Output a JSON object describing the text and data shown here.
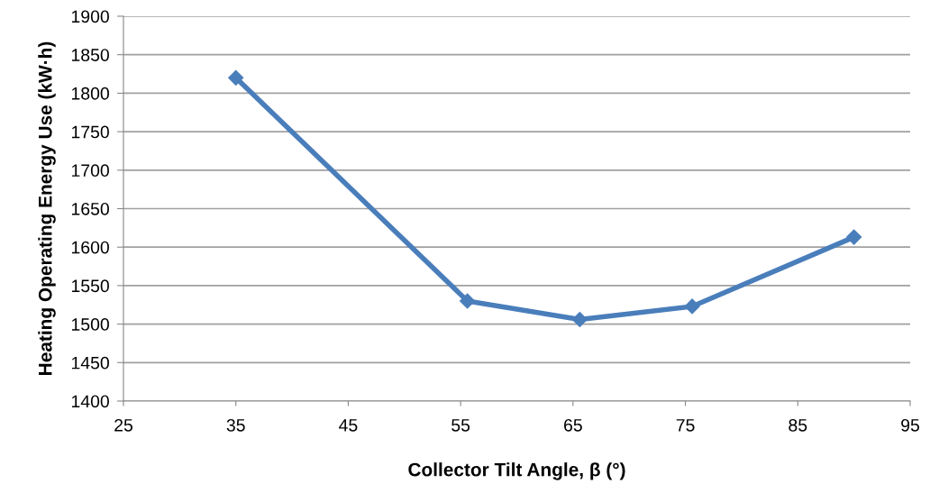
{
  "chart_data": {
    "type": "line",
    "xlabel": "Collector Tilt Angle, β (°)",
    "ylabel": "Heating Operating Energy Use (kW·h)",
    "x": [
      35,
      55.6,
      65.6,
      75.6,
      90
    ],
    "series": [
      {
        "color": "#4a7ebb",
        "values": [
          1820,
          1530,
          1506,
          1523,
          1613
        ]
      }
    ],
    "xlim": [
      25,
      95
    ],
    "xticks": [
      25,
      35,
      45,
      55,
      65,
      75,
      85,
      95
    ],
    "ylim": [
      1400,
      1900
    ],
    "yticks": [
      1400,
      1450,
      1500,
      1550,
      1600,
      1650,
      1700,
      1750,
      1800,
      1850,
      1900
    ],
    "grid": "y",
    "marker": "diamond",
    "line_style": "solid"
  }
}
